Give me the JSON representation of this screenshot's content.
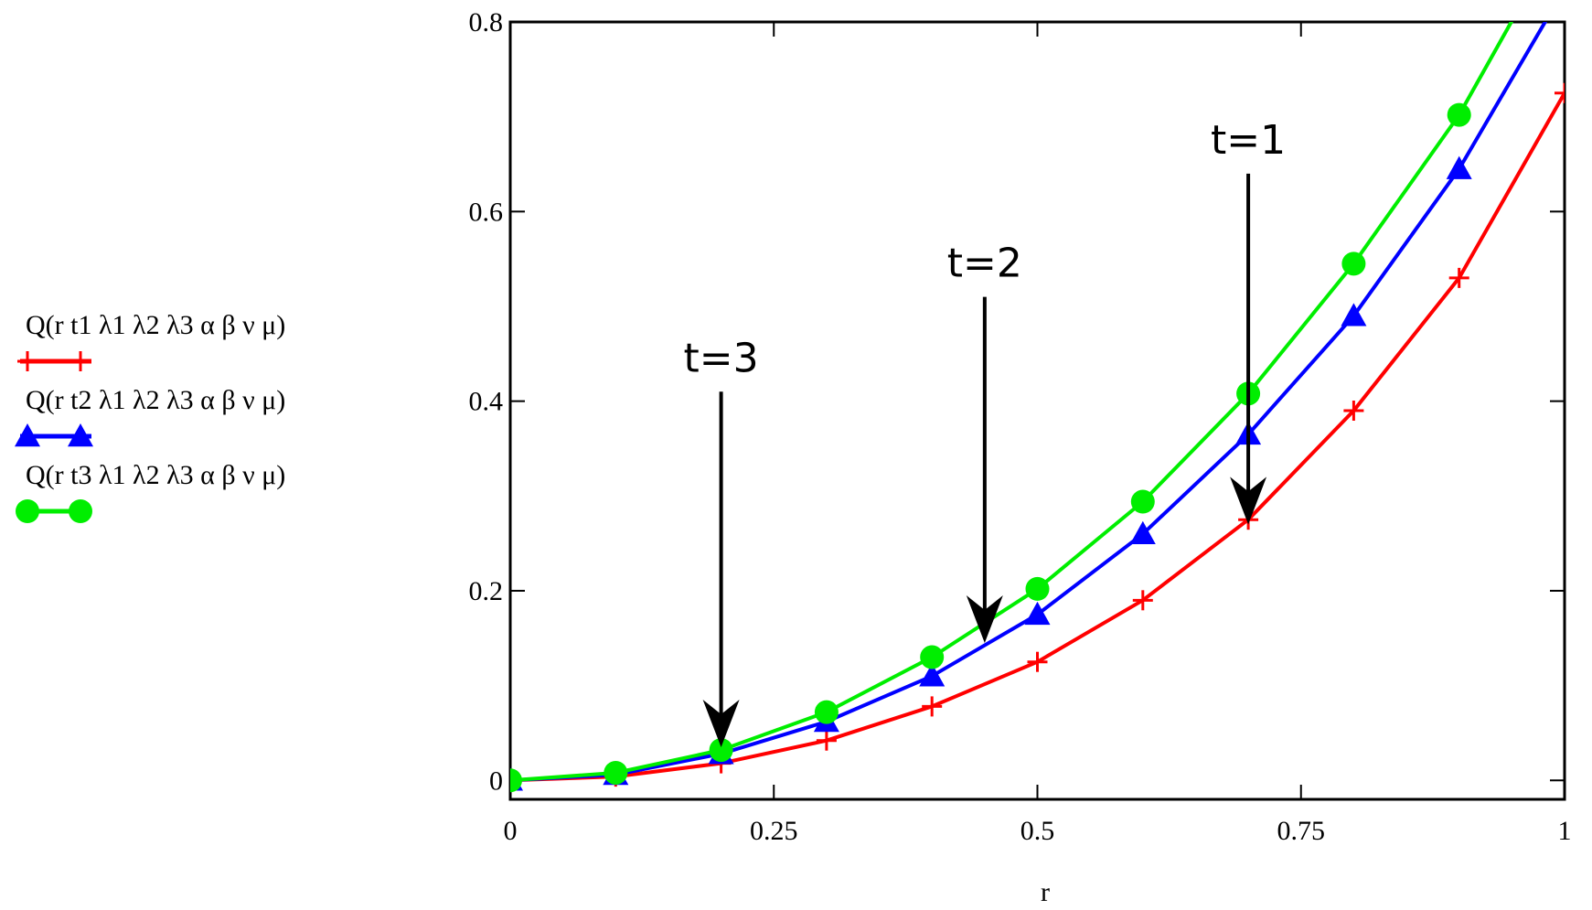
{
  "chart_data": {
    "type": "line",
    "title": "",
    "xlabel": "r",
    "ylabel": "",
    "xlim": [
      0,
      1
    ],
    "ylim": [
      -0.02,
      0.8
    ],
    "x_ticks": [
      0,
      0.25,
      0.5,
      0.75,
      1
    ],
    "x_tick_labels": [
      "0",
      "0.25",
      "0.5",
      "0.75",
      "1"
    ],
    "y_ticks": [
      0,
      0.2,
      0.4,
      0.6,
      0.8
    ],
    "y_tick_labels": [
      "0",
      "0.2",
      "0.4",
      "0.6",
      "0.8"
    ],
    "grid": false,
    "legend_position": "left",
    "x": [
      0,
      0.1,
      0.2,
      0.3,
      0.4,
      0.5,
      0.6,
      0.7,
      0.8,
      0.9,
      1.0
    ],
    "series": [
      {
        "name": "Q(r  t1  λ1  λ2  λ3  α  β  ν  μ)",
        "color": "#ff0000",
        "marker": "plus",
        "values": [
          0.0,
          0.004,
          0.018,
          0.042,
          0.078,
          0.125,
          0.19,
          0.275,
          0.39,
          0.53,
          0.725
        ]
      },
      {
        "name": "Q(r  t2  λ1  λ2  λ3  α  β  ν  μ)",
        "color": "#0000ff",
        "marker": "triangle",
        "values": [
          0.0,
          0.006,
          0.028,
          0.062,
          0.11,
          0.175,
          0.26,
          0.365,
          0.49,
          0.645,
          0.835
        ]
      },
      {
        "name": "Q(r  t3  λ1  λ2  λ3  α  β  ν  μ)",
        "color": "#00ee00",
        "marker": "circle",
        "values": [
          0.0,
          0.008,
          0.032,
          0.072,
          0.13,
          0.202,
          0.294,
          0.408,
          0.545,
          0.702,
          0.9
        ]
      }
    ],
    "annotations": [
      {
        "text": "t=1",
        "arrow_x": 0.7,
        "arrow_tip_y": 0.27,
        "arrow_tail_y": 0.64
      },
      {
        "text": "t=2",
        "arrow_x": 0.45,
        "arrow_tip_y": 0.145,
        "arrow_tail_y": 0.51
      },
      {
        "text": "t=3",
        "arrow_x": 0.2,
        "arrow_tip_y": 0.035,
        "arrow_tail_y": 0.41
      }
    ]
  }
}
